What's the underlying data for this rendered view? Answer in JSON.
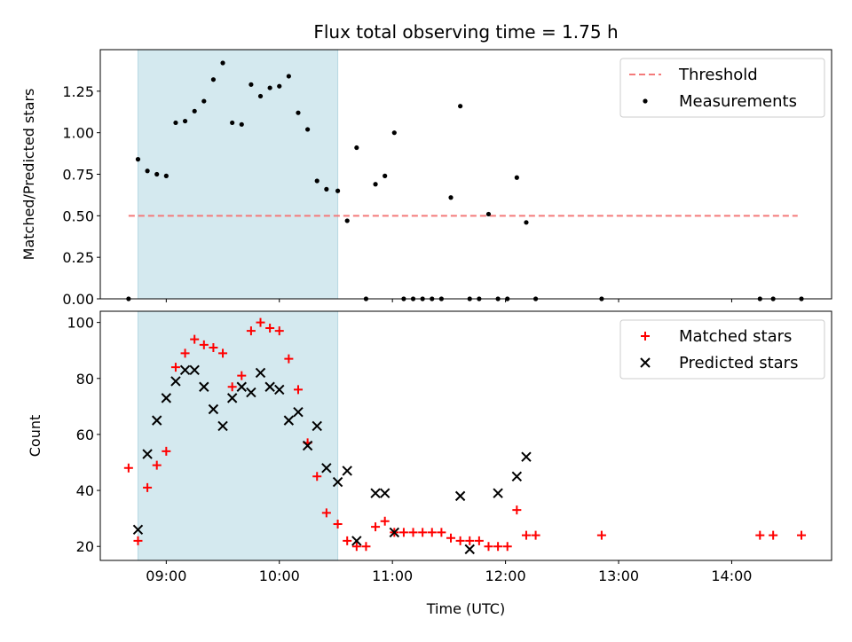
{
  "chart_data": [
    {
      "type": "scatter",
      "title": "Flux total observing time = 1.75 h",
      "xlabel": "",
      "ylabel": "Matched/Predicted stars",
      "ylim": [
        0,
        1.5
      ],
      "xlim": [
        "08:25",
        "14:53"
      ],
      "yticks": [
        "0.00",
        "0.25",
        "0.50",
        "0.75",
        "1.00",
        "1.25"
      ],
      "xticks": [
        "09:00",
        "10:00",
        "11:00",
        "12:00",
        "13:00",
        "14:00"
      ],
      "shaded_interval": [
        "08:45",
        "10:31"
      ],
      "shade_color": "#d4e9ef",
      "legend_position": "upper right",
      "legend": [
        "Threshold",
        "Measurements"
      ],
      "threshold": {
        "name": "Threshold",
        "y": 0.5,
        "x_range": [
          "08:40",
          "14:35"
        ],
        "color": "#f47a7a",
        "style": "dashed"
      },
      "series": [
        {
          "name": "Measurements",
          "marker": "dot",
          "color": "#000000",
          "points": [
            [
              "08:40",
              0.0
            ],
            [
              "08:45",
              0.84
            ],
            [
              "08:50",
              0.77
            ],
            [
              "08:55",
              0.75
            ],
            [
              "09:00",
              0.74
            ],
            [
              "09:05",
              1.06
            ],
            [
              "09:10",
              1.07
            ],
            [
              "09:15",
              1.13
            ],
            [
              "09:20",
              1.19
            ],
            [
              "09:25",
              1.32
            ],
            [
              "09:30",
              1.42
            ],
            [
              "09:35",
              1.06
            ],
            [
              "09:40",
              1.05
            ],
            [
              "09:45",
              1.29
            ],
            [
              "09:50",
              1.22
            ],
            [
              "09:55",
              1.27
            ],
            [
              "10:00",
              1.28
            ],
            [
              "10:05",
              1.34
            ],
            [
              "10:10",
              1.12
            ],
            [
              "10:15",
              1.02
            ],
            [
              "10:20",
              0.71
            ],
            [
              "10:25",
              0.66
            ],
            [
              "10:31",
              0.65
            ],
            [
              "10:36",
              0.47
            ],
            [
              "10:41",
              0.91
            ],
            [
              "10:46",
              0.0
            ],
            [
              "10:51",
              0.69
            ],
            [
              "10:56",
              0.74
            ],
            [
              "11:01",
              1.0
            ],
            [
              "11:06",
              0.0
            ],
            [
              "11:11",
              0.0
            ],
            [
              "11:16",
              0.0
            ],
            [
              "11:21",
              0.0
            ],
            [
              "11:26",
              0.0
            ],
            [
              "11:31",
              0.61
            ],
            [
              "11:36",
              1.16
            ],
            [
              "11:41",
              0.0
            ],
            [
              "11:46",
              0.0
            ],
            [
              "11:51",
              0.51
            ],
            [
              "11:56",
              0.0
            ],
            [
              "12:01",
              0.0
            ],
            [
              "12:06",
              0.73
            ],
            [
              "12:11",
              0.46
            ],
            [
              "12:16",
              0.0
            ],
            [
              "12:51",
              0.0
            ],
            [
              "14:15",
              0.0
            ],
            [
              "14:22",
              0.0
            ],
            [
              "14:37",
              0.0
            ]
          ]
        }
      ]
    },
    {
      "type": "scatter",
      "title": "",
      "xlabel": "Time (UTC)",
      "ylabel": "Count",
      "ylim": [
        15,
        104
      ],
      "xlim": [
        "08:25",
        "14:53"
      ],
      "yticks": [
        "20",
        "40",
        "60",
        "80",
        "100"
      ],
      "xticks": [
        "09:00",
        "10:00",
        "11:00",
        "12:00",
        "13:00",
        "14:00"
      ],
      "shaded_interval": [
        "08:45",
        "10:31"
      ],
      "shade_color": "#d4e9ef",
      "legend_position": "upper right",
      "legend": [
        "Matched stars",
        "Predicted stars"
      ],
      "series": [
        {
          "name": "Matched stars",
          "marker": "plus",
          "color": "#ff0000",
          "points": [
            [
              "08:40",
              48
            ],
            [
              "08:45",
              22
            ],
            [
              "08:50",
              41
            ],
            [
              "08:55",
              49
            ],
            [
              "09:00",
              54
            ],
            [
              "09:05",
              84
            ],
            [
              "09:10",
              89
            ],
            [
              "09:15",
              94
            ],
            [
              "09:20",
              92
            ],
            [
              "09:25",
              91
            ],
            [
              "09:30",
              89
            ],
            [
              "09:35",
              77
            ],
            [
              "09:40",
              81
            ],
            [
              "09:45",
              97
            ],
            [
              "09:50",
              100
            ],
            [
              "09:55",
              98
            ],
            [
              "10:00",
              97
            ],
            [
              "10:05",
              87
            ],
            [
              "10:10",
              76
            ],
            [
              "10:15",
              57
            ],
            [
              "10:20",
              45
            ],
            [
              "10:25",
              32
            ],
            [
              "10:31",
              28
            ],
            [
              "10:36",
              22
            ],
            [
              "10:41",
              20
            ],
            [
              "10:46",
              20
            ],
            [
              "10:51",
              27
            ],
            [
              "10:56",
              29
            ],
            [
              "11:01",
              25
            ],
            [
              "11:06",
              25
            ],
            [
              "11:11",
              25
            ],
            [
              "11:16",
              25
            ],
            [
              "11:21",
              25
            ],
            [
              "11:26",
              25
            ],
            [
              "11:31",
              23
            ],
            [
              "11:36",
              22
            ],
            [
              "11:41",
              22
            ],
            [
              "11:46",
              22
            ],
            [
              "11:51",
              20
            ],
            [
              "11:56",
              20
            ],
            [
              "12:01",
              20
            ],
            [
              "12:06",
              33
            ],
            [
              "12:11",
              24
            ],
            [
              "12:16",
              24
            ],
            [
              "12:51",
              24
            ],
            [
              "14:15",
              24
            ],
            [
              "14:22",
              24
            ],
            [
              "14:37",
              24
            ]
          ]
        },
        {
          "name": "Predicted stars",
          "marker": "x",
          "color": "#000000",
          "points": [
            [
              "08:45",
              26
            ],
            [
              "08:50",
              53
            ],
            [
              "08:55",
              65
            ],
            [
              "09:00",
              73
            ],
            [
              "09:05",
              79
            ],
            [
              "09:10",
              83
            ],
            [
              "09:15",
              83
            ],
            [
              "09:20",
              77
            ],
            [
              "09:25",
              69
            ],
            [
              "09:30",
              63
            ],
            [
              "09:35",
              73
            ],
            [
              "09:40",
              77
            ],
            [
              "09:45",
              75
            ],
            [
              "09:50",
              82
            ],
            [
              "09:55",
              77
            ],
            [
              "10:00",
              76
            ],
            [
              "10:05",
              65
            ],
            [
              "10:10",
              68
            ],
            [
              "10:15",
              56
            ],
            [
              "10:20",
              63
            ],
            [
              "10:25",
              48
            ],
            [
              "10:31",
              43
            ],
            [
              "10:36",
              47
            ],
            [
              "10:41",
              22
            ],
            [
              "10:51",
              39
            ],
            [
              "10:56",
              39
            ],
            [
              "11:01",
              25
            ],
            [
              "11:36",
              38
            ],
            [
              "11:41",
              19
            ],
            [
              "11:56",
              39
            ],
            [
              "12:06",
              45
            ],
            [
              "12:11",
              52
            ]
          ]
        }
      ]
    }
  ]
}
